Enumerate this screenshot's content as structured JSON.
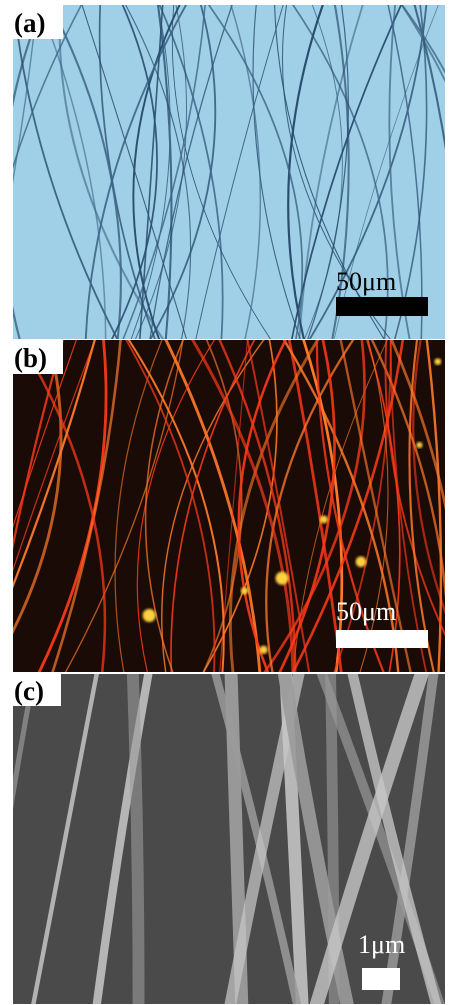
{
  "panels": [
    {
      "label": "(a)",
      "scale_bar": "50μm"
    },
    {
      "label": "(b)",
      "scale_bar": "50μm"
    },
    {
      "label": "(c)",
      "scale_bar": "1μm"
    }
  ]
}
